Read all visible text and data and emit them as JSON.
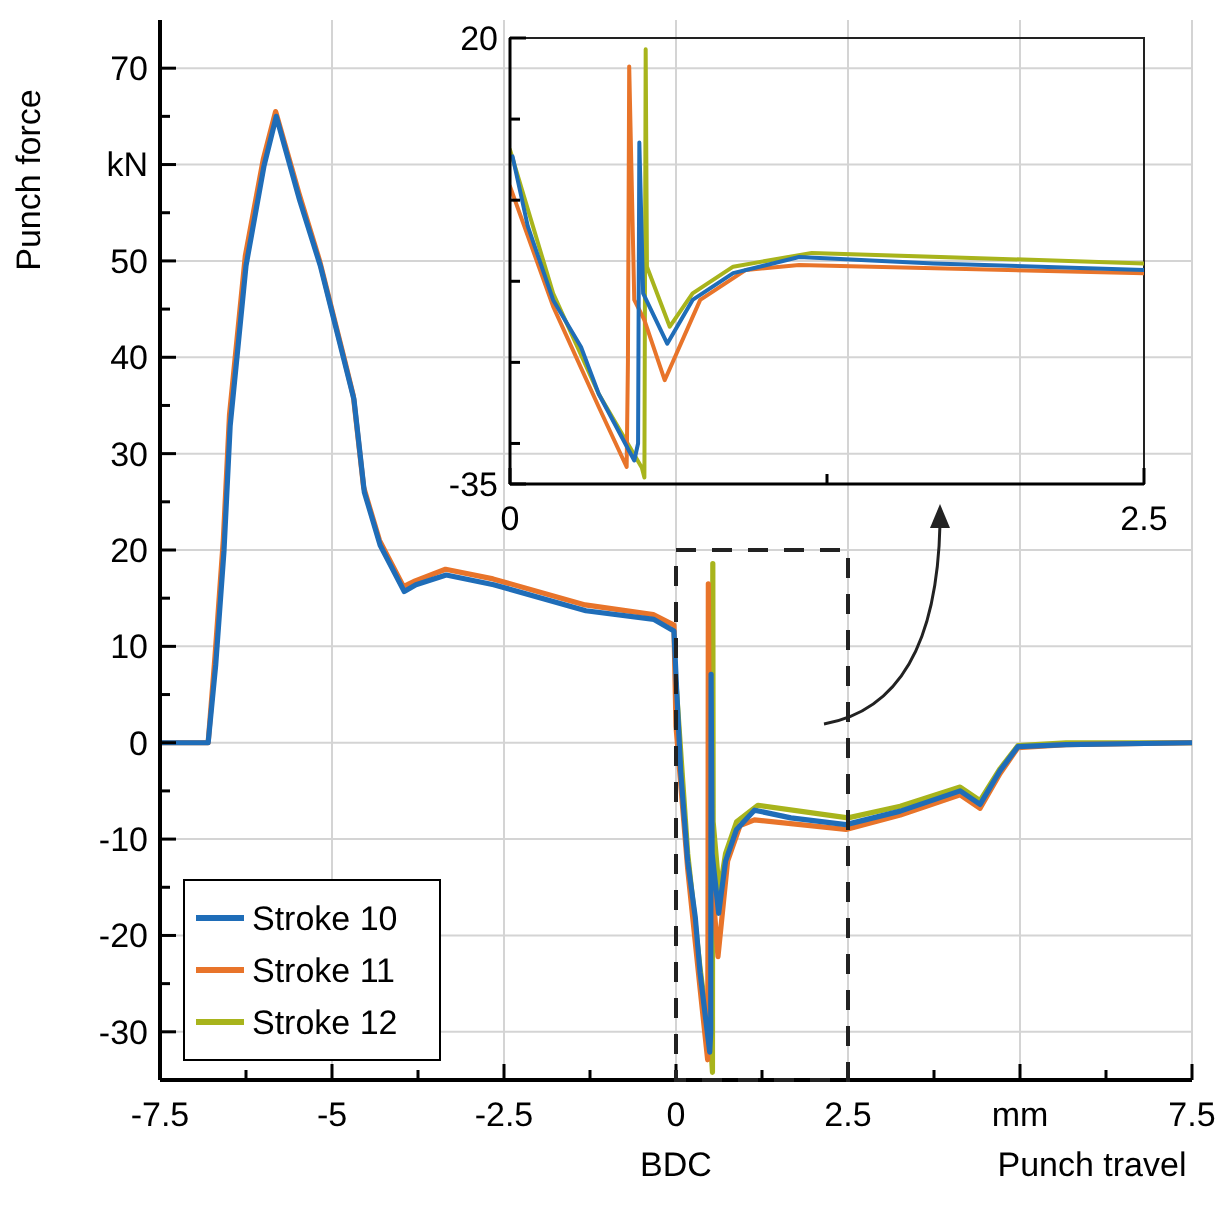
{
  "chart_data": [
    {
      "type": "line",
      "xlabel": "Punch travel",
      "ylabel": "Punch force",
      "annotations": [
        "BDC"
      ],
      "xlim": [
        -7.5,
        7.5
      ],
      "ylim": [
        -35,
        75
      ],
      "xticks": [
        -7.5,
        {
          "value": -6.25,
          "label": null
        },
        -5,
        {
          "value": -3.75,
          "label": null
        },
        -2.5,
        {
          "value": -1.25,
          "label": null
        },
        0,
        {
          "value": 1.25,
          "label": null
        },
        2.5,
        {
          "value": 3.75,
          "label": null
        },
        {
          "value": 5,
          "label": "mm"
        },
        {
          "value": 6.25,
          "label": null
        },
        7.5
      ],
      "yticks": [
        {
          "value": -35,
          "label": null
        },
        -30,
        {
          "value": -25,
          "label": null
        },
        -20,
        {
          "value": -15,
          "label": null
        },
        -10,
        {
          "value": -5,
          "label": null
        },
        0,
        {
          "value": 5,
          "label": null
        },
        10,
        {
          "value": 15,
          "label": null
        },
        20,
        {
          "value": 25,
          "label": null
        },
        30,
        {
          "value": 35,
          "label": null
        },
        40,
        {
          "value": 45,
          "label": null
        },
        50,
        {
          "value": 55,
          "label": null
        },
        {
          "value": 60,
          "label": "kN"
        },
        {
          "value": 65,
          "label": null
        },
        70
      ],
      "grid": true,
      "legend": "bottom left",
      "line_style": "solid",
      "marker": "none",
      "series": [
        {
          "name": "Stroke 10",
          "color": "#1f6db8",
          "x": [
            -7.5,
            -6.8,
            -6.69,
            -6.57,
            -6.48,
            -6.25,
            -5.99,
            -5.81,
            -5.47,
            -5.17,
            -4.8,
            -4.68,
            -4.53,
            -4.3,
            -3.95,
            -3.78,
            -3.34,
            -2.65,
            -1.31,
            -0.32,
            -0.03,
            0.01,
            0.07,
            0.17,
            0.28,
            0.35,
            0.49,
            0.505,
            0.51,
            0.525,
            0.62,
            0.72,
            0.88,
            1.14,
            1.67,
            2.47,
            3.26,
            4.13,
            4.42,
            4.71,
            4.97,
            5.67,
            7.5
          ],
          "values": [
            0,
            0,
            8.1,
            19.9,
            32.9,
            49.5,
            59.8,
            65,
            56.3,
            49.5,
            39,
            35.6,
            26,
            20.5,
            15.7,
            16.4,
            17.4,
            16.4,
            13.7,
            12.8,
            11.6,
            5.4,
            -3.2,
            -12.3,
            -18.1,
            -23.9,
            -32.1,
            -30,
            7.1,
            -11.5,
            -17.7,
            -12.3,
            -9,
            -7,
            -7.8,
            -8.5,
            -7.1,
            -5,
            -6.4,
            -2.9,
            -0.4,
            -0.2,
            0
          ]
        },
        {
          "name": "Stroke 11",
          "color": "#e8742a",
          "x": [
            -7.5,
            -6.8,
            -6.7,
            -6.58,
            -6.49,
            -6.26,
            -6.0,
            -5.82,
            -5.48,
            -5.18,
            -4.81,
            -4.69,
            -4.54,
            -4.31,
            -3.96,
            -3.79,
            -3.35,
            -2.66,
            -1.32,
            -0.33,
            -0.03,
            0,
            0.17,
            0.35,
            0.46,
            0.465,
            0.47,
            0.49,
            0.53,
            0.61,
            0.75,
            0.93,
            1.14,
            2.47,
            3.26,
            4.13,
            4.42,
            4.71,
            4.97,
            5.67,
            7.5
          ],
          "values": [
            0,
            0,
            9,
            21,
            34,
            50.5,
            60.5,
            65.5,
            57,
            50,
            39.5,
            36,
            26.5,
            21,
            16.2,
            16.8,
            18,
            17,
            14.3,
            13.3,
            12.2,
            1.7,
            -13.1,
            -25.5,
            -32.9,
            -20,
            16.5,
            -12.3,
            -14.8,
            -22.2,
            -12.3,
            -8.6,
            -8,
            -9,
            -7.5,
            -5.4,
            -6.8,
            -3.2,
            -0.5,
            -0.2,
            0
          ]
        },
        {
          "name": "Stroke 12",
          "color": "#a8b41c",
          "x": [
            0,
            0.17,
            0.35,
            0.52,
            0.53,
            0.535,
            0.54,
            0.63,
            0.72,
            0.88,
            1.19,
            2.5,
            3.26,
            4.13,
            4.42,
            4.71,
            4.97,
            5.67,
            7.5
          ],
          "values": [
            6.2,
            -11.5,
            -23.4,
            -33,
            -34.2,
            18.6,
            -8.2,
            -15.6,
            -11.5,
            -8.2,
            -6.5,
            -7.8,
            -6.6,
            -4.6,
            -6,
            -2.7,
            -0.3,
            0,
            0
          ]
        }
      ]
    },
    {
      "type": "line",
      "xlim": [
        0,
        2.5
      ],
      "ylim": [
        -35,
        20
      ],
      "xticks": [
        0,
        {
          "value": 1.25,
          "label": null
        },
        2.5
      ],
      "yticks": [
        -35,
        {
          "value": -30,
          "label": null
        },
        {
          "value": -20,
          "label": null
        },
        {
          "value": -10,
          "label": null
        },
        {
          "value": 0,
          "label": null
        },
        {
          "value": 10,
          "label": null
        },
        20
      ],
      "grid": "y",
      "line_style": "solid",
      "marker": "none",
      "series": [
        {
          "color": "#1f6db8",
          "x": [
            0.01,
            0.07,
            0.17,
            0.28,
            0.35,
            0.49,
            0.505,
            0.51,
            0.525,
            0.62,
            0.72,
            0.88,
            1.14,
            1.67,
            2.5
          ],
          "values": [
            5.4,
            -3.2,
            -12.3,
            -18.1,
            -23.9,
            -32.1,
            -30,
            7.1,
            -11.5,
            -17.7,
            -12.3,
            -9,
            -7,
            -7.8,
            -8.6
          ]
        },
        {
          "color": "#e8742a",
          "x": [
            0,
            0.17,
            0.35,
            0.46,
            0.465,
            0.47,
            0.49,
            0.53,
            0.61,
            0.75,
            0.93,
            1.14,
            2.5
          ],
          "values": [
            1.7,
            -13.1,
            -25.5,
            -32.9,
            -20,
            16.5,
            -12.3,
            -14.8,
            -22.2,
            -12.3,
            -8.6,
            -8,
            -9
          ]
        },
        {
          "color": "#a8b41c",
          "x": [
            0,
            0.17,
            0.35,
            0.52,
            0.53,
            0.535,
            0.54,
            0.63,
            0.72,
            0.88,
            1.19,
            2.5
          ],
          "values": [
            6.2,
            -11.5,
            -23.9,
            -33,
            -34.2,
            18.6,
            -8.2,
            -15.6,
            -11.5,
            -8.2,
            -6.5,
            -7.8
          ]
        }
      ]
    }
  ]
}
